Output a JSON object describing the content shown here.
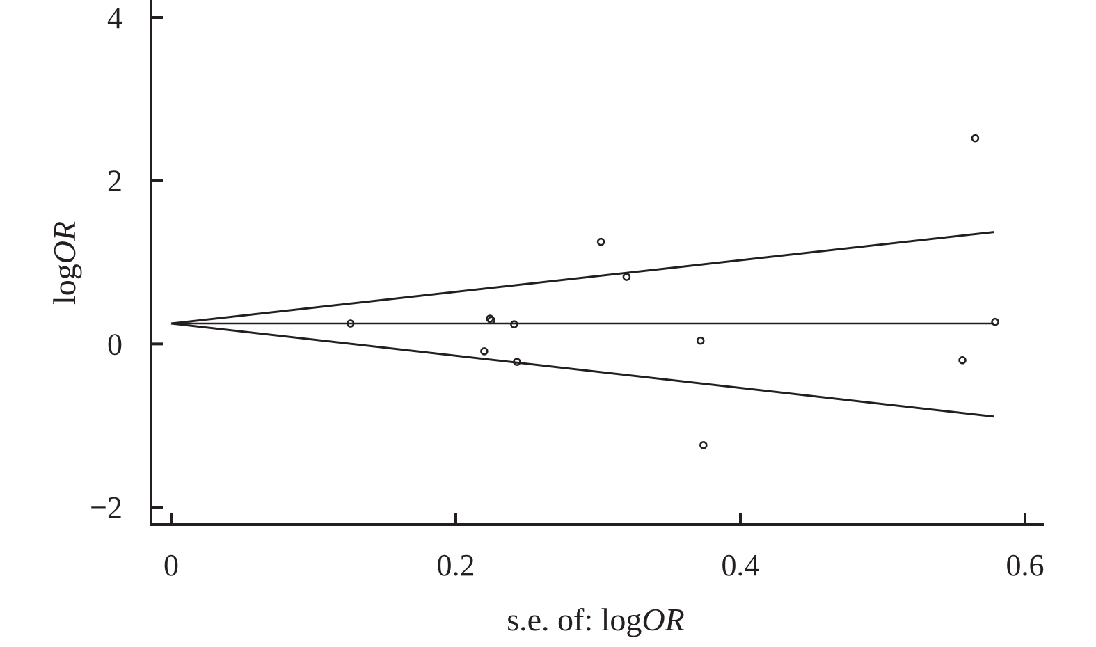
{
  "chart_data": {
    "type": "scatter",
    "title": "",
    "xlabel": {
      "text": "s.e. of: log",
      "italic": "OR"
    },
    "ylabel": {
      "text": "log",
      "italic": "OR"
    },
    "xlim": [
      -0.015,
      0.615
    ],
    "ylim": [
      -2.25,
      4.25
    ],
    "xticks": [
      {
        "value": 0,
        "label": "0"
      },
      {
        "value": 0.2,
        "label": "0.2"
      },
      {
        "value": 0.4,
        "label": "0.4"
      },
      {
        "value": 0.6,
        "label": "0.6"
      }
    ],
    "yticks": [
      {
        "value": -2,
        "label": "−2"
      },
      {
        "value": 0,
        "label": "0"
      },
      {
        "value": 2,
        "label": "2"
      },
      {
        "value": 4,
        "label": "4"
      }
    ],
    "grid": false,
    "legend": "none",
    "pooled_estimate": 0.25,
    "funnel_x_end": 0.578,
    "funnel_upper_end": 1.37,
    "funnel_lower_end": -0.89,
    "series": [
      {
        "points": [
          {
            "x": 0.126,
            "y": 0.25
          },
          {
            "x": 0.22,
            "y": -0.09
          },
          {
            "x": 0.224,
            "y": 0.31
          },
          {
            "x": 0.225,
            "y": 0.29
          },
          {
            "x": 0.241,
            "y": 0.24
          },
          {
            "x": 0.243,
            "y": -0.22
          },
          {
            "x": 0.302,
            "y": 1.25
          },
          {
            "x": 0.32,
            "y": 0.82
          },
          {
            "x": 0.372,
            "y": 0.04
          },
          {
            "x": 0.374,
            "y": -1.24
          },
          {
            "x": 0.556,
            "y": -0.2
          },
          {
            "x": 0.565,
            "y": 2.52
          },
          {
            "x": 0.579,
            "y": 0.27
          }
        ]
      }
    ],
    "colors": {
      "ink": "#231f20",
      "background": "#ffffff"
    }
  }
}
